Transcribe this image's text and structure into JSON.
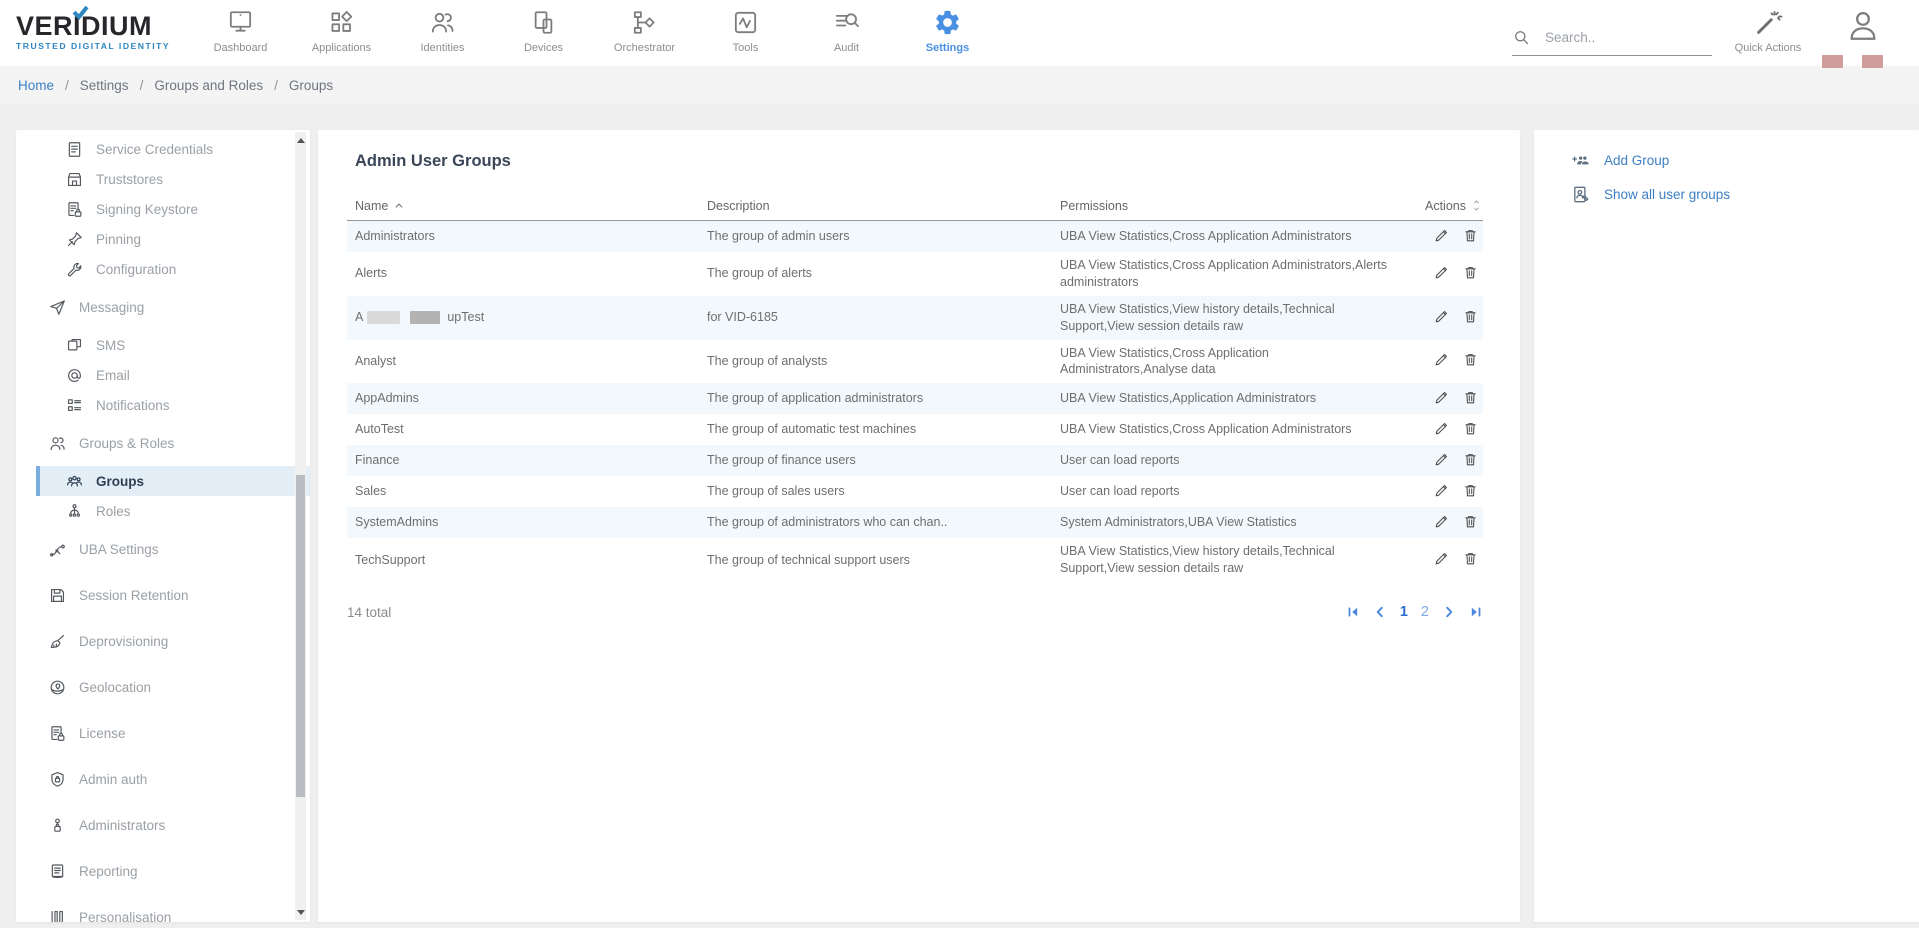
{
  "brand": {
    "name": "VERIDIUM",
    "tagline": "TRUSTED DIGITAL IDENTITY"
  },
  "header": {
    "nav": [
      {
        "id": "dashboard",
        "label": "Dashboard",
        "icon": "monitor-icon",
        "active": false
      },
      {
        "id": "applications",
        "label": "Applications",
        "icon": "apps-icon",
        "active": false
      },
      {
        "id": "identities",
        "label": "Identities",
        "icon": "identities-icon",
        "active": false
      },
      {
        "id": "devices",
        "label": "Devices",
        "icon": "devices-icon",
        "active": false
      },
      {
        "id": "orchestrator",
        "label": "Orchestrator",
        "icon": "orchestrator-icon",
        "active": false
      },
      {
        "id": "tools",
        "label": "Tools",
        "icon": "tools-icon",
        "active": false
      },
      {
        "id": "audit",
        "label": "Audit",
        "icon": "audit-icon",
        "active": false
      },
      {
        "id": "settings",
        "label": "Settings",
        "icon": "gear-icon",
        "active": true
      }
    ],
    "search": {
      "placeholder": "Search.."
    },
    "quick_actions_label": "Quick Actions"
  },
  "breadcrumb": [
    {
      "label": "Home",
      "link": true
    },
    {
      "label": "Settings",
      "link": false
    },
    {
      "label": "Groups and Roles",
      "link": false
    },
    {
      "label": "Groups",
      "link": false
    }
  ],
  "sidebar": {
    "items": [
      {
        "label": "Service Credentials",
        "icon": "document-icon",
        "level": 1,
        "active": false
      },
      {
        "label": "Truststores",
        "icon": "store-icon",
        "level": 1,
        "active": false
      },
      {
        "label": "Signing Keystore",
        "icon": "document-lock-icon",
        "level": 1,
        "active": false
      },
      {
        "label": "Pinning",
        "icon": "pin-icon",
        "level": 1,
        "active": false
      },
      {
        "label": "Configuration",
        "icon": "wrench-icon",
        "level": 1,
        "active": false
      },
      {
        "label": "Messaging",
        "icon": "paper-plane-icon",
        "level": 0,
        "active": false
      },
      {
        "label": "SMS",
        "icon": "sms-icon",
        "level": 1,
        "active": false
      },
      {
        "label": "Email",
        "icon": "at-icon",
        "level": 1,
        "active": false
      },
      {
        "label": "Notifications",
        "icon": "notifications-icon",
        "level": 1,
        "active": false
      },
      {
        "label": "Groups & Roles",
        "icon": "people-icon",
        "level": 0,
        "active": false
      },
      {
        "label": "Groups",
        "icon": "group-icon",
        "level": 1,
        "active": true
      },
      {
        "label": "Roles",
        "icon": "roles-icon",
        "level": 1,
        "active": false
      },
      {
        "label": "UBA Settings",
        "icon": "branch-icon",
        "level": 0,
        "active": false
      },
      {
        "label": "Session Retention",
        "icon": "floppy-icon",
        "level": 0,
        "active": false
      },
      {
        "label": "Deprovisioning",
        "icon": "broom-icon",
        "level": 0,
        "active": false
      },
      {
        "label": "Geolocation",
        "icon": "globe-icon",
        "level": 0,
        "active": false
      },
      {
        "label": "License",
        "icon": "document-lock-icon",
        "level": 0,
        "active": false
      },
      {
        "label": "Admin auth",
        "icon": "shield-lock-icon",
        "level": 0,
        "active": false
      },
      {
        "label": "Administrators",
        "icon": "person-lock-icon",
        "level": 0,
        "active": false
      },
      {
        "label": "Reporting",
        "icon": "report-icon",
        "level": 0,
        "active": false
      },
      {
        "label": "Personalisation",
        "icon": "personalisation-icon",
        "level": 0,
        "active": false
      }
    ]
  },
  "main": {
    "title": "Admin User Groups",
    "table": {
      "columns": [
        {
          "label": "Name",
          "sort": "asc"
        },
        {
          "label": "Description",
          "sort": "none"
        },
        {
          "label": "Permissions",
          "sort": "none"
        },
        {
          "label": "Actions",
          "sort": "both"
        }
      ],
      "rows": [
        {
          "name": "Administrators",
          "description": "The group of admin users",
          "permissions": "UBA View Statistics,Cross Application Administrators"
        },
        {
          "name": "Alerts",
          "description": "The group of alerts",
          "permissions": "UBA View Statistics,Cross Application Administrators,Alerts administrators"
        },
        {
          "name_segments": [
            {
              "text": "A"
            },
            {
              "redacted": "light"
            },
            {
              "redacted": "dark"
            },
            {
              "text": "upTest"
            }
          ],
          "description": "for VID-6185",
          "permissions": "UBA View Statistics,View history details,Technical Support,View session details raw"
        },
        {
          "name": "Analyst",
          "description": "The group of analysts",
          "permissions": "UBA View Statistics,Cross Application Administrators,Analyse data"
        },
        {
          "name": "AppAdmins",
          "description": "The group of application administrators",
          "permissions": "UBA View Statistics,Application Administrators"
        },
        {
          "name": "AutoTest",
          "description": "The group of automatic test machines",
          "permissions": "UBA View Statistics,Cross Application Administrators"
        },
        {
          "name": "Finance",
          "description": "The group of finance users",
          "permissions": "User can load reports"
        },
        {
          "name": "Sales",
          "description": "The group of sales users",
          "permissions": "User can load reports"
        },
        {
          "name": "SystemAdmins",
          "description": "The group of administrators who can chan..",
          "permissions": "System Administrators,UBA View Statistics"
        },
        {
          "name": "TechSupport",
          "description": "The group of technical support users",
          "permissions": "UBA View Statistics,View history details,Technical Support,View session details raw"
        }
      ],
      "row_actions": [
        {
          "id": "edit",
          "icon": "pencil-icon"
        },
        {
          "id": "delete",
          "icon": "trash-icon"
        }
      ]
    },
    "footer": {
      "total": "14 total",
      "pagination": {
        "pages": [
          "1",
          "2"
        ],
        "current": "1"
      }
    }
  },
  "panel": {
    "actions": [
      {
        "label": "Add Group",
        "icon": "add-group-icon"
      },
      {
        "label": "Show all user groups",
        "icon": "show-groups-icon"
      }
    ]
  },
  "colors": {
    "accent_link": "#3d7fc4",
    "active_nav": "#4a90e2",
    "row_stripe": "#f3f8fc",
    "sidebar_active_bg": "#e3eef7",
    "sidebar_active_border": "#79aede",
    "redaction_pink": "#d09c9c",
    "logo_blue": "#2e86c1"
  }
}
